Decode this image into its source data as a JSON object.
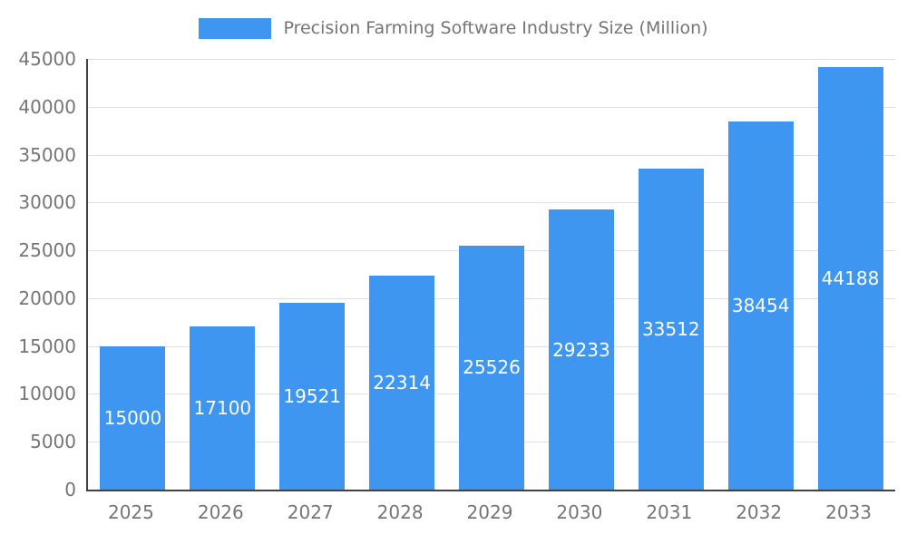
{
  "chart_data": {
    "type": "bar",
    "title": "Precision Farming Software Industry Size (Million)",
    "categories": [
      "2025",
      "2026",
      "2027",
      "2028",
      "2029",
      "2030",
      "2031",
      "2032",
      "2033"
    ],
    "values": [
      15000,
      17100,
      19521,
      22314,
      25526,
      29233,
      33512,
      38454,
      44188
    ],
    "xlabel": "",
    "ylabel": "",
    "ylim": [
      0,
      45000
    ],
    "ytick_step": 5000,
    "grid": true,
    "legend_position": "top",
    "bar_color": "#3E96F0",
    "value_label_color": "#FFFFFF",
    "axis_text_color": "#757575",
    "grid_color": "#E0E0E0",
    "axis_line_color": "#424242"
  }
}
